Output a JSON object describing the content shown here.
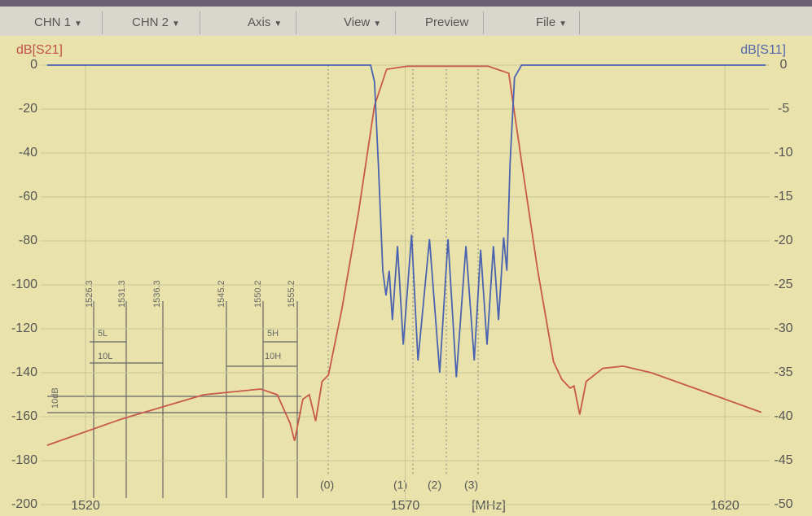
{
  "toolbar": {
    "menus": [
      "CHN 1",
      "CHN 2",
      "Axis",
      "View",
      "Preview",
      "File"
    ]
  },
  "chart_data": {
    "type": "line",
    "ylabel": "dB[S21]",
    "y2label": "dB[S11]",
    "xlabel": "[MHz]",
    "xlim": [
      1513,
      1627
    ],
    "xticks": [
      1520,
      1570,
      1620
    ],
    "ylim": [
      -200,
      0
    ],
    "yticks": [
      0,
      -20,
      -40,
      -60,
      -80,
      -100,
      -120,
      -140,
      -160,
      -180,
      -200
    ],
    "y2lim": [
      -50,
      0
    ],
    "y2ticks": [
      0,
      -5,
      -10,
      -15,
      -20,
      -25,
      -30,
      -35,
      -40,
      -45,
      -50
    ],
    "grid": true,
    "series": [
      {
        "color": "#c8584a",
        "axis": "y",
        "x": [
          1514,
          1525.7,
          1538.5,
          1547.4,
          1550,
          1552,
          1552.7,
          1554,
          1555,
          1556,
          1557,
          1558,
          1560.1,
          1562.7,
          1565.2,
          1567.1,
          1570.3,
          1583,
          1586.2,
          1588.2,
          1590.7,
          1593.2,
          1594.5,
          1595.8,
          1596.4,
          1597.3,
          1598.3,
          1600.9,
          1604.1,
          1608.5,
          1616.2,
          1625.7
        ],
        "values": [
          -173,
          -161,
          -150,
          -147.4,
          -150,
          -163,
          -171,
          -152,
          -150,
          -162,
          -144,
          -141,
          -111,
          -67,
          -18.5,
          -1.9,
          -0.5,
          -0.5,
          -3.7,
          -44,
          -93,
          -135,
          -143,
          -147,
          -146,
          -159,
          -144,
          -138,
          -137,
          -140,
          -148,
          -158
        ]
      },
      {
        "color": "#4a62b0",
        "axis": "y2",
        "x": [
          1514,
          1564.6,
          1565.2,
          1565.8,
          1566.5,
          1567,
          1567.5,
          1568,
          1568.8,
          1569.7,
          1571,
          1572,
          1573.8,
          1575.4,
          1576.7,
          1578,
          1579.5,
          1580.8,
          1581.8,
          1582.8,
          1583.8,
          1584.6,
          1585.4,
          1585.9,
          1586.4,
          1587.1,
          1588.2,
          1626.4
        ],
        "values": [
          0,
          0,
          -1.9,
          -11.2,
          -23.4,
          -26.2,
          -23.4,
          -29,
          -20.6,
          -31.8,
          -19.3,
          -33.6,
          -19.8,
          -35,
          -19.8,
          -35.5,
          -20.6,
          -33.6,
          -21,
          -31.8,
          -20.6,
          -29,
          -19.6,
          -23.4,
          -11.2,
          -1.4,
          0,
          0
        ]
      }
    ]
  },
  "annotations": {
    "frequencies": [
      "1526.3",
      "1531.3",
      "1536.3",
      "1545.2",
      "1550.2",
      "1555.2"
    ],
    "spans": [
      "5L",
      "10L",
      "5H",
      "10H"
    ],
    "level": "10dB",
    "markers": [
      "(0)",
      "(1)",
      "(2)",
      "(3)"
    ]
  }
}
